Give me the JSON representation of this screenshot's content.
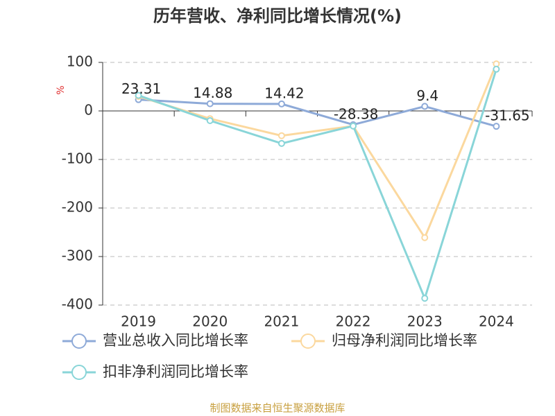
{
  "chart_data": {
    "type": "line",
    "title": "历年营收、净利同比增长情况(%)",
    "y_label": "%",
    "categories": [
      "2019",
      "2020",
      "2021",
      "2022",
      "2023",
      "2024"
    ],
    "series": [
      {
        "name": "营业总收入同比增长率",
        "color": "#8eaad8",
        "values": [
          23.31,
          14.88,
          14.42,
          -28.38,
          9.4,
          -31.65
        ]
      },
      {
        "name": "归母净利润同比增长率",
        "color": "#fbd89e",
        "values": [
          30,
          -16,
          -51,
          -31,
          -261,
          97
        ]
      },
      {
        "name": "扣非净利润同比增长率",
        "color": "#89d5d8",
        "values": [
          32,
          -20,
          -67,
          -31,
          -386,
          86
        ]
      }
    ],
    "labeled_series": 0,
    "ylim": [
      -400,
      100
    ],
    "yticks": [
      -400,
      -300,
      -200,
      -100,
      0,
      100
    ],
    "grid": true,
    "source": "制图数据来自恒生聚源数据库"
  }
}
